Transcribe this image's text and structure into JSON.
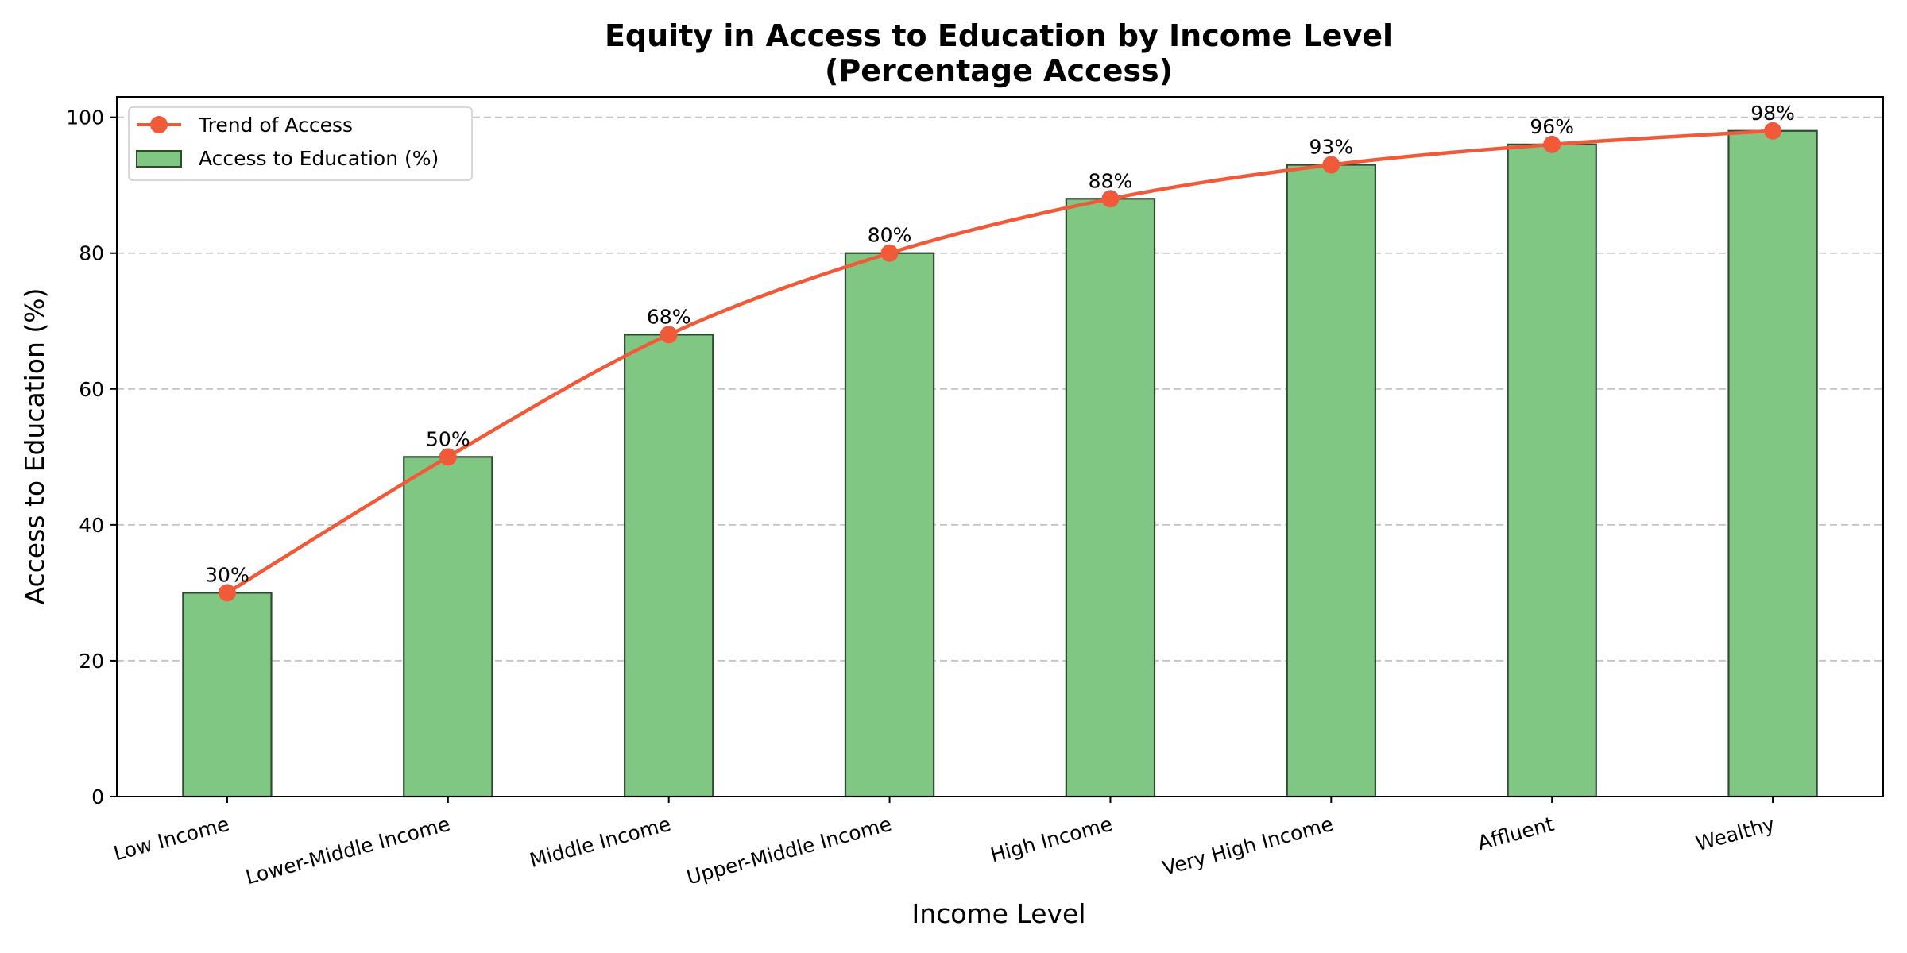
{
  "chart_data": {
    "type": "bar",
    "title": [
      "Equity in Access to Education by Income Level",
      "(Percentage Access)"
    ],
    "xlabel": "Income Level",
    "ylabel": "Access to Education (%)",
    "ylim": [
      0,
      103
    ],
    "yticks": [
      0,
      20,
      40,
      60,
      80,
      100
    ],
    "grid": "horizontal dashed",
    "legend_position": "top-left",
    "categories": [
      "Low Income",
      "Lower-Middle Income",
      "Middle Income",
      "Upper-Middle Income",
      "High Income",
      "Very High Income",
      "Affluent",
      "Wealthy"
    ],
    "series": [
      {
        "name": "Access to Education (%)",
        "type": "bar",
        "values": [
          30,
          50,
          68,
          80,
          88,
          93,
          96,
          98
        ],
        "color": "#81c784",
        "edge_color": "#2e4a32"
      },
      {
        "name": "Trend of Access",
        "type": "line",
        "values": [
          30,
          50,
          68,
          80,
          88,
          93,
          96,
          98
        ],
        "color": "#f05a38"
      }
    ],
    "data_labels": [
      "30%",
      "50%",
      "68%",
      "80%",
      "88%",
      "93%",
      "96%",
      "98%"
    ],
    "legend": [
      "Trend of Access",
      "Access to Education (%)"
    ]
  }
}
